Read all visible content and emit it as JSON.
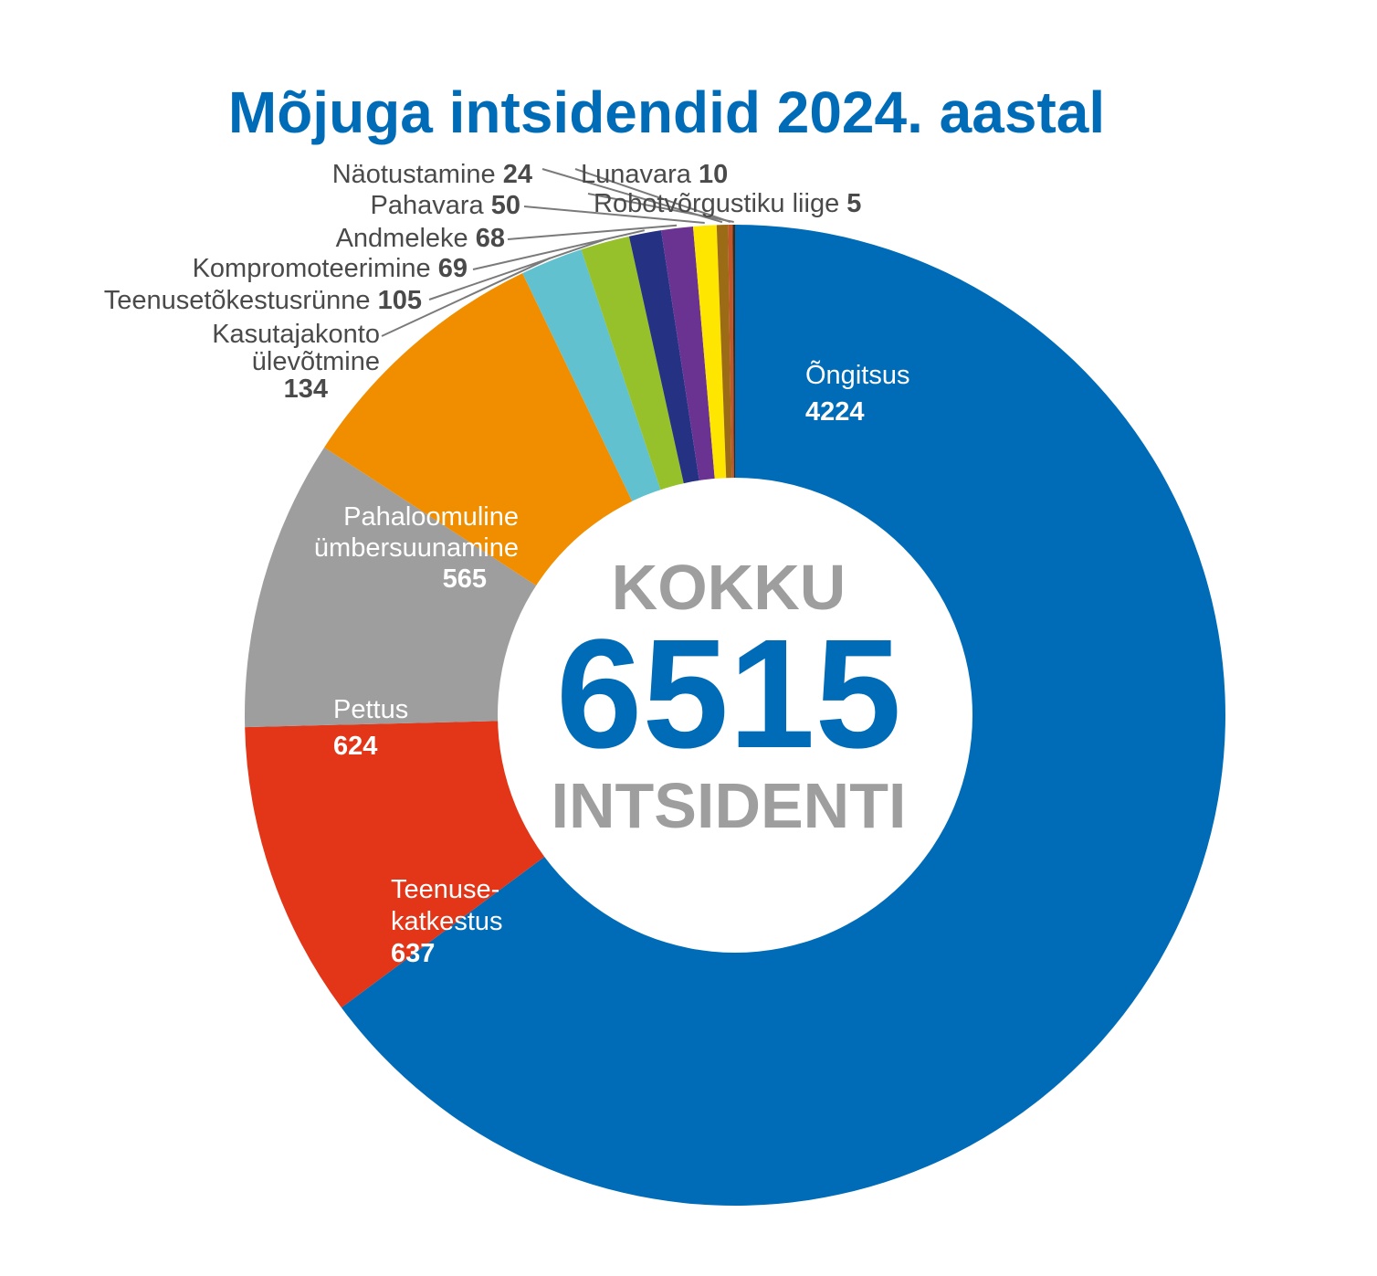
{
  "chart_data": {
    "type": "pie",
    "variant": "donut",
    "title": "Mõjuga intsidendid 2024. aastal",
    "center": {
      "top": "KOKKU",
      "total": "6515",
      "bottom": "INTSIDENTI"
    },
    "slices": [
      {
        "label": "Õngitsus",
        "value": 4224,
        "value_text": "4224",
        "color": "#006cb7"
      },
      {
        "label": "Teenuse-katkestus",
        "label_lines": [
          "Teenuse-",
          "katkestus"
        ],
        "value": 637,
        "value_text": "637",
        "color": "#e33517"
      },
      {
        "label": "Pettus",
        "value": 624,
        "value_text": "624",
        "color": "#9e9e9e"
      },
      {
        "label": "Pahaloomuline ümbersuunamine",
        "label_lines": [
          "Pahaloomuline",
          "ümbersuunamine"
        ],
        "value": 565,
        "value_text": "565",
        "color": "#f18e00"
      },
      {
        "label": "Kasutajakonto ülevõtmine",
        "label_lines": [
          "Kasutajakonto",
          "ülevõtmine"
        ],
        "value": 134,
        "value_text": "134",
        "color": "#62c1cf"
      },
      {
        "label": "Teenusetõkestusrünne",
        "value": 105,
        "value_text": "105",
        "color": "#96c12a"
      },
      {
        "label": "Kompromoteerimine",
        "value": 69,
        "value_text": "69",
        "color": "#253284"
      },
      {
        "label": "Andmeleke",
        "value": 68,
        "value_text": "68",
        "color": "#6a3391"
      },
      {
        "label": "Pahavara",
        "value": 50,
        "value_text": "50",
        "color": "#ffe600"
      },
      {
        "label": "Näotustamine",
        "value": 24,
        "value_text": "24",
        "color": "#9c6b16"
      },
      {
        "label": "Lunavara",
        "value": 10,
        "value_text": "10",
        "color": "#c0562b"
      },
      {
        "label": "Robotvõrgustiku liige",
        "value": 5,
        "value_text": "5",
        "color": "#3a2a1a"
      }
    ],
    "colors": {
      "title": "#006cb7",
      "center_total": "#006cb7",
      "center_text": "#9e9e9e",
      "label_dark": "#4a4a4a",
      "label_light": "#ffffff",
      "leader_line": "#7a7a7a"
    }
  }
}
